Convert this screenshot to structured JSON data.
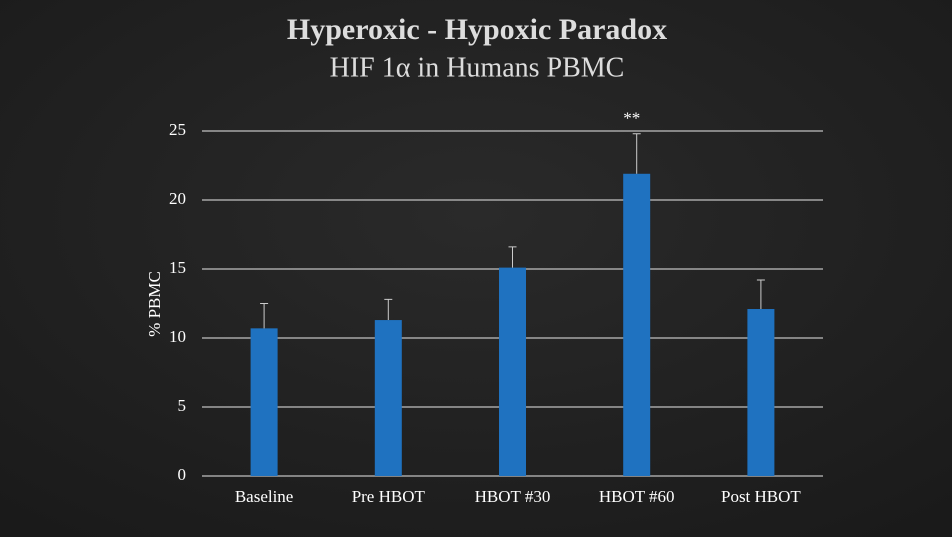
{
  "chart_data": {
    "type": "bar",
    "title": "Hyperoxic - Hypoxic Paradox",
    "subtitle": "HIF 1α in Humans PBMC",
    "y_label": "% PBMC",
    "categories": [
      "Baseline",
      "Pre HBOT",
      "HBOT #30",
      "HBOT #60",
      "Post HBOT"
    ],
    "values": [
      10.7,
      11.3,
      15.1,
      21.9,
      12.1
    ],
    "errors": [
      1.8,
      1.5,
      1.5,
      2.9,
      2.1
    ],
    "color": "#1f72c0",
    "ylim": [
      0,
      25
    ],
    "yticks": [
      0,
      5,
      10,
      15,
      20,
      25
    ],
    "grid": true,
    "annotations": [
      {
        "text": "**",
        "category": "HBOT #60"
      }
    ]
  }
}
